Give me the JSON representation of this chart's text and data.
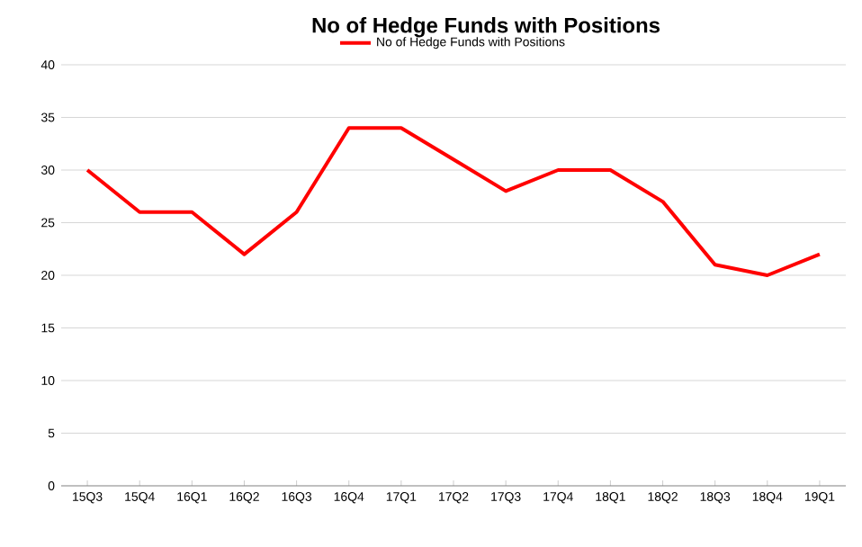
{
  "chart_data": {
    "type": "line",
    "title": "No of Hedge Funds with Positions",
    "categories": [
      "15Q3",
      "15Q4",
      "16Q1",
      "16Q2",
      "16Q3",
      "16Q4",
      "17Q1",
      "17Q2",
      "17Q3",
      "17Q4",
      "18Q1",
      "18Q2",
      "18Q3",
      "18Q4",
      "19Q1"
    ],
    "series": [
      {
        "name": "No of Hedge Funds with Positions",
        "color": "#ff0000",
        "values": [
          30,
          26,
          26,
          22,
          26,
          34,
          34,
          31,
          28,
          30,
          30,
          27,
          21,
          20,
          22
        ]
      }
    ],
    "ylim": [
      0,
      40
    ],
    "yticks": [
      0,
      5,
      10,
      15,
      20,
      25,
      30,
      35,
      40
    ],
    "grid": "y",
    "legend": "top",
    "marker": "none",
    "line_style": "solid"
  }
}
